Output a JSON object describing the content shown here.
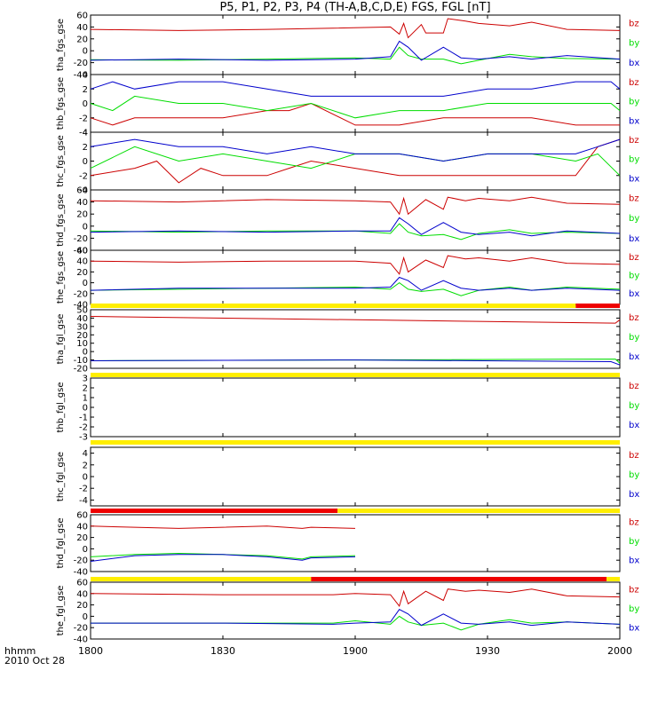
{
  "title": "P5, P1, P2, P3, P4 (TH-A,B,C,D,E) FGS, FGL [nT]",
  "footer": {
    "time_format": "hhmm",
    "date": "2010 Oct 28"
  },
  "colors": {
    "bz": "#cc0000",
    "by": "#00dd00",
    "bx": "#0000cc",
    "flag_yellow": "#ffee00",
    "flag_red": "#ee0000"
  },
  "x_axis": {
    "range": [
      0,
      120
    ],
    "ticks": [
      0,
      30,
      60,
      90,
      120
    ],
    "tick_labels": [
      "1800",
      "1830",
      "1900",
      "1930",
      "2000"
    ]
  },
  "chart_data": {
    "type": "line",
    "panels": [
      {
        "id": "tha_fgs_gse",
        "ylabel": "tha_fgs_gse",
        "ylim": [
          -40,
          60
        ],
        "yticks": [
          60,
          40,
          20,
          0,
          -20,
          -40
        ],
        "series": [
          {
            "name": "bz",
            "x": [
              0,
              20,
              40,
              55,
              68,
              70,
              71,
              72,
              75,
              76,
              80,
              81,
              85,
              88,
              95,
              100,
              108,
              120
            ],
            "y": [
              36,
              34,
              36,
              38,
              40,
              28,
              46,
              22,
              44,
              30,
              30,
              54,
              50,
              46,
              42,
              48,
              36,
              34
            ]
          },
          {
            "name": "by",
            "x": [
              0,
              20,
              40,
              60,
              68,
              70,
              72,
              75,
              80,
              84,
              88,
              95,
              100,
              108,
              120
            ],
            "y": [
              -15,
              -16,
              -14,
              -12,
              -14,
              6,
              -8,
              -14,
              -14,
              -22,
              -16,
              -6,
              -10,
              -13,
              -14
            ]
          },
          {
            "name": "bx",
            "x": [
              0,
              20,
              40,
              60,
              68,
              70,
              72,
              75,
              80,
              84,
              88,
              95,
              100,
              108,
              120
            ],
            "y": [
              -16,
              -14,
              -16,
              -14,
              -10,
              16,
              6,
              -16,
              6,
              -12,
              -14,
              -10,
              -14,
              -8,
              -14
            ]
          }
        ]
      },
      {
        "id": "thb_fgs_gse",
        "ylabel": "thb_fgs_gse",
        "ylim": [
          -4,
          4
        ],
        "yticks": [
          4,
          2,
          0,
          -2,
          -4
        ],
        "series": [
          {
            "name": "bz",
            "x": [
              0,
              5,
              10,
              20,
              30,
              40,
              45,
              50,
              60,
              70,
              80,
              90,
              100,
              110,
              115,
              120
            ],
            "y": [
              -2,
              -3,
              -2,
              -2,
              -2,
              -1,
              -1,
              0,
              -3,
              -3,
              -2,
              -2,
              -2,
              -3,
              -3,
              -3
            ]
          },
          {
            "name": "by",
            "x": [
              0,
              5,
              10,
              20,
              30,
              40,
              50,
              60,
              70,
              80,
              90,
              100,
              110,
              118,
              120
            ],
            "y": [
              0,
              -1,
              1,
              0,
              0,
              -1,
              0,
              -2,
              -1,
              -1,
              0,
              0,
              0,
              0,
              -1
            ]
          },
          {
            "name": "bx",
            "x": [
              0,
              5,
              10,
              20,
              30,
              40,
              50,
              60,
              70,
              80,
              90,
              100,
              110,
              118,
              120
            ],
            "y": [
              2,
              3,
              2,
              3,
              3,
              2,
              1,
              1,
              1,
              1,
              2,
              2,
              3,
              3,
              2
            ]
          }
        ]
      },
      {
        "id": "thc_fgs_gse",
        "ylabel": "thc_fgs_gse",
        "ylim": [
          -4,
          4
        ],
        "yticks": [
          4,
          2,
          0,
          -2,
          -4
        ],
        "series": [
          {
            "name": "bz",
            "x": [
              0,
              10,
              15,
              20,
              25,
              30,
              40,
              45,
              50,
              60,
              70,
              80,
              90,
              100,
              110,
              115,
              120
            ],
            "y": [
              -2,
              -1,
              0,
              -3,
              -1,
              -2,
              -2,
              -1,
              0,
              -1,
              -2,
              -2,
              -2,
              -2,
              -2,
              2,
              3
            ]
          },
          {
            "name": "by",
            "x": [
              0,
              10,
              20,
              30,
              40,
              50,
              60,
              70,
              80,
              90,
              100,
              110,
              115,
              120
            ],
            "y": [
              -1,
              2,
              0,
              1,
              0,
              -1,
              1,
              1,
              0,
              1,
              1,
              0,
              1,
              -2
            ]
          },
          {
            "name": "bx",
            "x": [
              0,
              10,
              20,
              30,
              40,
              50,
              60,
              70,
              80,
              90,
              100,
              110,
              115,
              120
            ],
            "y": [
              2,
              3,
              2,
              2,
              1,
              2,
              1,
              1,
              0,
              1,
              1,
              1,
              2,
              3
            ]
          }
        ]
      },
      {
        "id": "thd_fgs_gse",
        "ylabel": "thd_fgs_gse",
        "ylim": [
          -40,
          60
        ],
        "yticks": [
          60,
          40,
          20,
          0,
          -20,
          -40
        ],
        "series": [
          {
            "name": "bz",
            "x": [
              0,
              20,
              40,
              60,
              68,
              70,
              71,
              72,
              76,
              80,
              81,
              85,
              88,
              95,
              100,
              108,
              120
            ],
            "y": [
              42,
              40,
              44,
              42,
              40,
              20,
              46,
              20,
              44,
              28,
              48,
              42,
              46,
              42,
              48,
              38,
              36
            ]
          },
          {
            "name": "by",
            "x": [
              0,
              20,
              40,
              60,
              68,
              70,
              72,
              75,
              80,
              84,
              88,
              95,
              100,
              108,
              120
            ],
            "y": [
              -8,
              -10,
              -8,
              -8,
              -12,
              4,
              -10,
              -16,
              -14,
              -22,
              -12,
              -6,
              -12,
              -10,
              -12
            ]
          },
          {
            "name": "bx",
            "x": [
              0,
              20,
              40,
              60,
              68,
              70,
              72,
              75,
              80,
              84,
              88,
              95,
              100,
              108,
              120
            ],
            "y": [
              -10,
              -8,
              -10,
              -8,
              -8,
              14,
              4,
              -14,
              6,
              -10,
              -14,
              -10,
              -16,
              -8,
              -12
            ]
          }
        ]
      },
      {
        "id": "the_fgs_gse",
        "ylabel": "the_fgs_gse",
        "ylim": [
          -40,
          60
        ],
        "yticks": [
          60,
          40,
          20,
          0,
          -20,
          -40
        ],
        "series": [
          {
            "name": "bz",
            "x": [
              0,
              20,
              40,
              60,
              68,
              70,
              71,
              72,
              76,
              80,
              81,
              85,
              88,
              95,
              100,
              108,
              120
            ],
            "y": [
              40,
              38,
              40,
              40,
              36,
              16,
              46,
              20,
              42,
              28,
              50,
              44,
              46,
              40,
              46,
              36,
              34
            ]
          },
          {
            "name": "by",
            "x": [
              0,
              20,
              40,
              60,
              68,
              70,
              72,
              75,
              80,
              84,
              88,
              95,
              100,
              108,
              120
            ],
            "y": [
              -14,
              -12,
              -10,
              -8,
              -12,
              0,
              -12,
              -16,
              -12,
              -24,
              -14,
              -8,
              -14,
              -8,
              -12
            ]
          },
          {
            "name": "bx",
            "x": [
              0,
              20,
              40,
              60,
              68,
              70,
              72,
              75,
              80,
              84,
              88,
              95,
              100,
              108,
              120
            ],
            "y": [
              -14,
              -10,
              -10,
              -10,
              -8,
              10,
              4,
              -14,
              4,
              -10,
              -14,
              -10,
              -14,
              -10,
              -14
            ]
          }
        ]
      },
      {
        "id": "tha_fgl_gse",
        "ylabel": "tha_fgl_gse",
        "ylim": [
          -20,
          50
        ],
        "yticks": [
          50,
          40,
          30,
          20,
          10,
          0,
          -10,
          -20
        ],
        "series": [
          {
            "name": "bz",
            "x": [
              0,
              60,
              119,
              120
            ],
            "y": [
              42,
              38,
              34,
              38
            ]
          },
          {
            "name": "by",
            "x": [
              0,
              60,
              119,
              120
            ],
            "y": [
              -11,
              -10,
              -9,
              -14
            ]
          },
          {
            "name": "bx",
            "x": [
              0,
              60,
              118,
              120
            ],
            "y": [
              -11,
              -10,
              -12,
              -16
            ]
          }
        ]
      },
      {
        "id": "thb_fgl_gse",
        "ylabel": "thb_fgl_gse",
        "ylim": [
          -3,
          3
        ],
        "yticks": [
          3,
          2,
          1,
          0,
          -1,
          -2,
          -3
        ],
        "series": []
      },
      {
        "id": "thc_fgl_gse",
        "ylabel": "thc_fgl_gse",
        "ylim": [
          -5,
          5
        ],
        "yticks": [
          4,
          2,
          0,
          -2,
          -4
        ],
        "series": []
      },
      {
        "id": "thd_fgl_gse",
        "ylabel": "thd_fgl_gse",
        "ylim": [
          -40,
          60
        ],
        "yticks": [
          60,
          40,
          20,
          0,
          -20,
          -40
        ],
        "series": [
          {
            "name": "bz",
            "x": [
              0,
              10,
              20,
              30,
              40,
              48,
              50,
              60
            ],
            "y": [
              40,
              38,
              36,
              38,
              40,
              36,
              38,
              36
            ]
          },
          {
            "name": "by",
            "x": [
              0,
              10,
              20,
              30,
              40,
              48,
              50,
              60
            ],
            "y": [
              -14,
              -10,
              -8,
              -10,
              -12,
              -18,
              -14,
              -12
            ]
          },
          {
            "name": "bx",
            "x": [
              0,
              10,
              20,
              30,
              40,
              48,
              50,
              60
            ],
            "y": [
              -22,
              -12,
              -10,
              -10,
              -14,
              -20,
              -16,
              -14
            ]
          }
        ]
      },
      {
        "id": "the_fgl_gse",
        "ylabel": "the_fgl_gse",
        "ylim": [
          -40,
          60
        ],
        "yticks": [
          60,
          40,
          20,
          0,
          -20,
          -40
        ],
        "series": [
          {
            "name": "bz",
            "x": [
              0,
              30,
              55,
              60,
              68,
              70,
              71,
              72,
              76,
              80,
              81,
              85,
              88,
              95,
              100,
              108,
              120
            ],
            "y": [
              40,
              38,
              38,
              40,
              38,
              18,
              44,
              22,
              44,
              28,
              48,
              44,
              46,
              42,
              48,
              36,
              34
            ]
          },
          {
            "name": "by",
            "x": [
              0,
              30,
              55,
              60,
              68,
              70,
              72,
              75,
              80,
              84,
              88,
              95,
              100,
              108,
              120
            ],
            "y": [
              -12,
              -12,
              -12,
              -8,
              -14,
              0,
              -10,
              -16,
              -12,
              -24,
              -14,
              -6,
              -12,
              -10,
              -14
            ]
          },
          {
            "name": "bx",
            "x": [
              0,
              30,
              55,
              60,
              68,
              70,
              72,
              75,
              80,
              84,
              88,
              95,
              100,
              108,
              120
            ],
            "y": [
              -12,
              -12,
              -14,
              -12,
              -10,
              12,
              4,
              -16,
              4,
              -12,
              -14,
              -10,
              -16,
              -10,
              -14
            ]
          }
        ]
      }
    ],
    "flag_bars": [
      {
        "after_panel": 4,
        "segments": [
          {
            "x0": 0,
            "x1": 110,
            "color": "yellow"
          },
          {
            "x0": 110,
            "x1": 120,
            "color": "red"
          }
        ]
      },
      {
        "after_panel": 5,
        "segments": [
          {
            "x0": 0,
            "x1": 120,
            "color": "yellow"
          }
        ]
      },
      {
        "after_panel": 6,
        "segments": [
          {
            "x0": 0,
            "x1": 120,
            "color": "yellow"
          }
        ]
      },
      {
        "after_panel": 7,
        "segments": [
          {
            "x0": 0,
            "x1": 56,
            "color": "red"
          },
          {
            "x0": 56,
            "x1": 120,
            "color": "yellow"
          }
        ]
      },
      {
        "after_panel": 8,
        "segments": [
          {
            "x0": 0,
            "x1": 50,
            "color": "yellow"
          },
          {
            "x0": 50,
            "x1": 117,
            "color": "red"
          },
          {
            "x0": 117,
            "x1": 120,
            "color": "yellow"
          }
        ]
      }
    ],
    "legend": [
      "bz",
      "by",
      "bx"
    ]
  }
}
